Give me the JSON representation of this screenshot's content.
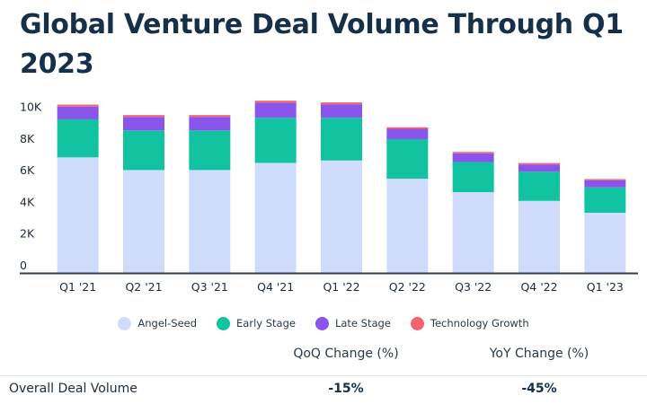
{
  "title": "Global Venture Deal Volume Through Q1 2023",
  "colors": {
    "angel_seed": "#cfdcfb",
    "early_stage": "#11c3a1",
    "late_stage": "#8a55ec",
    "technology_growth": "#f2646f",
    "axis": "#333d47",
    "text": "#17304a"
  },
  "chart_data": {
    "type": "bar",
    "stacked": true,
    "categories": [
      "Q1 '21",
      "Q2 '21",
      "Q3 '21",
      "Q4 '21",
      "Q1 '22",
      "Q2 '22",
      "Q3 '22",
      "Q4 '22",
      "Q1 '23"
    ],
    "series": [
      {
        "name": "Angel-Seed",
        "color": "#cfdcfb",
        "values": [
          7300,
          6500,
          6500,
          6950,
          7100,
          5950,
          5100,
          4550,
          3800
        ]
      },
      {
        "name": "Early Stage",
        "color": "#11c3a1",
        "values": [
          2400,
          2500,
          2500,
          2850,
          2700,
          2500,
          1900,
          1850,
          1600
        ]
      },
      {
        "name": "Late Stage",
        "color": "#8a55ec",
        "values": [
          800,
          850,
          850,
          950,
          850,
          650,
          550,
          450,
          450
        ]
      },
      {
        "name": "Technology Growth",
        "color": "#f2646f",
        "values": [
          130,
          120,
          120,
          130,
          120,
          100,
          90,
          90,
          80
        ]
      }
    ],
    "yticks": [
      0,
      2000,
      4000,
      6000,
      8000,
      10000
    ],
    "ytick_labels": [
      "0",
      "2K",
      "4K",
      "6K",
      "8K",
      "10K"
    ],
    "ylim": [
      0,
      11000
    ],
    "grid": false,
    "legend_position": "bottom"
  },
  "table": {
    "headers": [
      "",
      "QoQ Change (%)",
      "YoY Change (%)"
    ],
    "row": {
      "label": "Overall Deal Volume",
      "qoq": "-15%",
      "yoy": "-45%"
    }
  }
}
